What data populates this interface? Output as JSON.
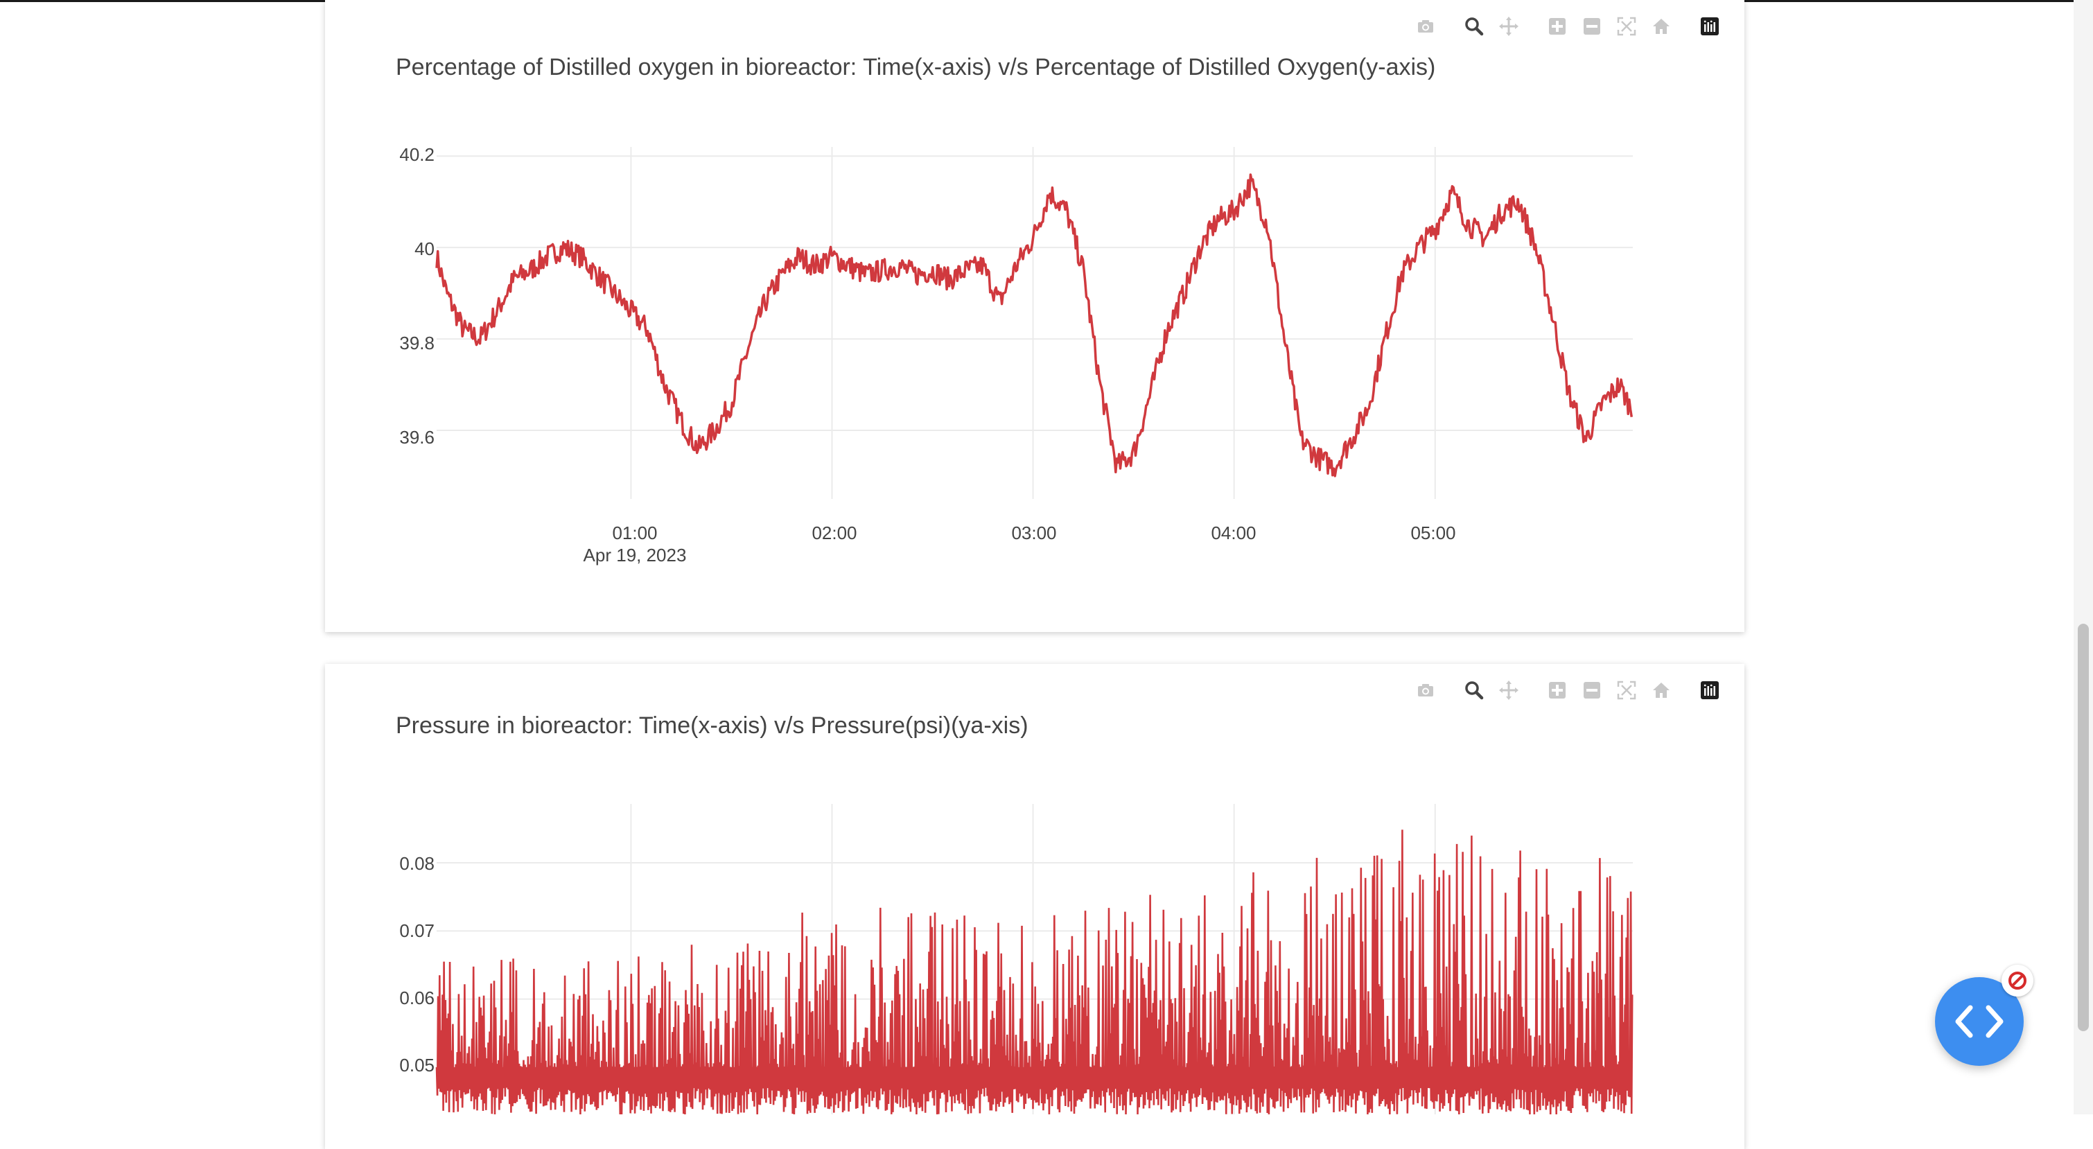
{
  "charts": [
    {
      "title": "Percentage of Distilled oxygen in bioreactor: Time(x-axis) v/s Percentage of Distilled Oxygen(y-axis)",
      "line_color": "#d0393e",
      "x_ticks": [
        "01:00",
        "02:00",
        "03:00",
        "04:00",
        "05:00"
      ],
      "x_date_label": "Apr 19, 2023",
      "y_ticks": [
        "40.2",
        "40",
        "39.8",
        "39.6"
      ]
    },
    {
      "title": "Pressure in bioreactor: Time(x-axis) v/s Pressure(psi)(ya-xis)",
      "line_color": "#d0393e",
      "y_ticks": [
        "0.08",
        "0.07",
        "0.06",
        "0.05"
      ]
    }
  ],
  "modebar": {
    "icons": [
      "camera-icon",
      "zoom-icon",
      "pan-icon",
      "zoom-in-icon",
      "zoom-out-icon",
      "autoscale-icon",
      "reset-home-icon",
      "plotly-logo-icon"
    ]
  },
  "chart_data": [
    {
      "type": "line",
      "title": "Percentage of Distilled oxygen in bioreactor: Time(x-axis) v/s Percentage of Distilled Oxygen(y-axis)",
      "xlabel": "",
      "ylabel": "",
      "x_range": [
        "2023-04-19 00:02",
        "2023-04-19 05:59"
      ],
      "ylim": [
        39.45,
        40.22
      ],
      "grid": true,
      "series": [
        {
          "x": [
            "00:02",
            "00:05",
            "00:10",
            "00:15",
            "00:20",
            "00:25",
            "00:30",
            "00:35",
            "00:40",
            "00:45",
            "00:50",
            "00:55",
            "01:00",
            "01:05",
            "01:10",
            "01:15",
            "01:20",
            "01:25",
            "01:30",
            "01:35",
            "01:40",
            "01:45",
            "01:50",
            "01:55",
            "02:00",
            "02:05",
            "02:10",
            "02:15",
            "02:20",
            "02:25",
            "02:30",
            "02:35",
            "02:40",
            "02:45",
            "02:50",
            "02:55",
            "03:00",
            "03:05",
            "03:10",
            "03:15",
            "03:20",
            "03:25",
            "03:30",
            "03:35",
            "03:40",
            "03:45",
            "03:50",
            "03:55",
            "04:00",
            "04:05",
            "04:10",
            "04:15",
            "04:20",
            "04:25",
            "04:30",
            "04:35",
            "04:40",
            "04:45",
            "04:50",
            "04:55",
            "05:00",
            "05:05",
            "05:10",
            "05:15",
            "05:20",
            "05:25",
            "05:30",
            "05:35",
            "05:40",
            "05:45",
            "05:50",
            "05:55",
            "05:59"
          ],
          "y": [
            39.98,
            39.9,
            39.82,
            39.8,
            39.86,
            39.93,
            39.95,
            39.98,
            40.0,
            39.98,
            39.94,
            39.9,
            39.86,
            39.82,
            39.7,
            39.62,
            39.56,
            39.6,
            39.66,
            39.78,
            39.88,
            39.94,
            39.98,
            39.96,
            39.98,
            39.96,
            39.94,
            39.95,
            39.96,
            39.94,
            39.95,
            39.93,
            39.95,
            39.96,
            39.88,
            39.96,
            40.02,
            40.12,
            40.08,
            39.95,
            39.7,
            39.52,
            39.55,
            39.68,
            39.82,
            39.9,
            40.0,
            40.06,
            40.08,
            40.14,
            40.05,
            39.8,
            39.58,
            39.54,
            39.52,
            39.58,
            39.65,
            39.8,
            39.94,
            40.0,
            40.04,
            40.12,
            40.05,
            40.02,
            40.08,
            40.1,
            40.0,
            39.85,
            39.68,
            39.58,
            39.66,
            39.7,
            39.64
          ]
        }
      ]
    },
    {
      "type": "line",
      "title": "Pressure in bioreactor: Time(x-axis) v/s Pressure(psi)(ya-xis)",
      "xlabel": "",
      "ylabel": "",
      "x_range": [
        "2023-04-19 00:02",
        "2023-04-19 05:59"
      ],
      "ylim": [
        0.044,
        0.09
      ],
      "grid": true,
      "series": [
        {
          "x": [
            "00:00",
            "01:00",
            "02:00",
            "03:00",
            "04:00",
            "05:00",
            "06:00"
          ],
          "y_min": [
            0.045,
            0.045,
            0.045,
            0.045,
            0.045,
            0.045,
            0.045
          ],
          "y_max": [
            0.066,
            0.066,
            0.074,
            0.073,
            0.079,
            0.086,
            0.082
          ]
        }
      ]
    }
  ]
}
